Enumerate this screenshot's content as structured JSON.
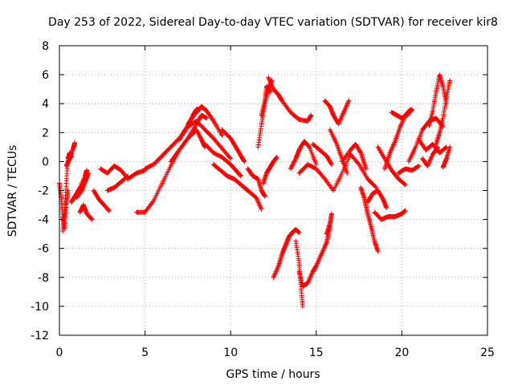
{
  "chart_data": {
    "type": "scatter",
    "title": "Day 253 of 2022, Sidereal Day-to-day VTEC variation (SDTVAR) for receiver kir8",
    "xlabel": "GPS time / hours",
    "ylabel": "SDTVAR / TECUs",
    "xlim": [
      0,
      25
    ],
    "ylim": [
      -12,
      8
    ],
    "xticks": [
      "0",
      "5",
      "10",
      "15",
      "20",
      "25"
    ],
    "yticks": [
      "-12",
      "-10",
      "-8",
      "-6",
      "-4",
      "-2",
      "0",
      "2",
      "4",
      "6",
      "8"
    ],
    "grid": true,
    "marker": "+",
    "series_color": "#ff0000",
    "tracks": [
      {
        "name": "track-01",
        "x": [
          0.0,
          0.1,
          0.2,
          0.3,
          0.4,
          0.5
        ],
        "y": [
          -1.5,
          -2.5,
          -3.8,
          -4.6,
          -3.0,
          -2.0
        ]
      },
      {
        "name": "track-02",
        "x": [
          0.2,
          0.3,
          0.4,
          0.5,
          0.6,
          0.7
        ],
        "y": [
          -4.8,
          -3.6,
          -1.5,
          0.2,
          0.6,
          0.3
        ]
      },
      {
        "name": "track-03",
        "x": [
          0.4,
          0.6,
          0.8,
          0.9
        ],
        "y": [
          -0.3,
          0.2,
          0.9,
          1.3
        ]
      },
      {
        "name": "track-04",
        "x": [
          0.7,
          0.9,
          1.2,
          1.5,
          1.6
        ],
        "y": [
          -2.8,
          -2.4,
          -1.8,
          -1.0,
          -0.6
        ]
      },
      {
        "name": "track-05",
        "x": [
          1.0,
          1.3,
          1.5,
          1.7
        ],
        "y": [
          -2.5,
          -2.0,
          -1.4,
          -0.8
        ]
      },
      {
        "name": "track-06",
        "x": [
          1.2,
          1.4,
          1.6,
          1.9
        ],
        "y": [
          -3.5,
          -3.0,
          -3.6,
          -4.0
        ]
      },
      {
        "name": "track-07",
        "x": [
          2.0,
          2.3,
          2.6,
          2.9
        ],
        "y": [
          -2.0,
          -2.6,
          -3.0,
          -3.4
        ]
      },
      {
        "name": "track-08",
        "x": [
          2.4,
          2.8,
          3.2,
          3.6,
          4.0,
          4.5,
          5.0
        ],
        "y": [
          -0.5,
          -0.8,
          -0.3,
          -0.6,
          -1.2,
          -0.8,
          -0.6
        ]
      },
      {
        "name": "track-09",
        "x": [
          2.8,
          3.2,
          3.6,
          4.0
        ],
        "y": [
          -2.0,
          -1.8,
          -1.4,
          -1.0
        ]
      },
      {
        "name": "track-10",
        "x": [
          4.5,
          5.0,
          5.5,
          6.0,
          6.5,
          7.0,
          7.5,
          8.0,
          8.3,
          8.5
        ],
        "y": [
          -3.5,
          -3.5,
          -2.7,
          -1.5,
          -0.3,
          0.8,
          1.6,
          2.2,
          1.5,
          1.0
        ]
      },
      {
        "name": "track-11",
        "x": [
          5.0,
          5.5,
          6.0,
          6.5,
          7.0,
          7.5,
          7.8,
          8.0,
          8.2
        ],
        "y": [
          -0.5,
          -0.2,
          0.4,
          1.0,
          1.6,
          2.5,
          3.2,
          3.6,
          3.6
        ]
      },
      {
        "name": "track-12",
        "x": [
          6.5,
          7.0,
          7.5,
          8.0,
          8.3,
          8.6
        ],
        "y": [
          0.0,
          0.8,
          1.6,
          2.6,
          3.2,
          3.0
        ]
      },
      {
        "name": "track-13",
        "x": [
          7.0,
          7.5,
          8.0,
          8.5,
          9.0,
          9.5,
          10.0
        ],
        "y": [
          1.5,
          2.4,
          2.8,
          2.2,
          1.6,
          0.9,
          0.2
        ]
      },
      {
        "name": "track-14",
        "x": [
          7.5,
          8.0,
          8.3,
          8.6,
          9.0,
          9.5
        ],
        "y": [
          2.6,
          3.4,
          3.8,
          3.5,
          2.8,
          1.8
        ]
      },
      {
        "name": "track-15",
        "x": [
          8.5,
          9.0,
          9.5,
          10.0,
          10.3,
          10.6
        ],
        "y": [
          1.2,
          0.6,
          0.3,
          -0.2,
          -0.6,
          -1.0
        ]
      },
      {
        "name": "track-16",
        "x": [
          9.5,
          10.0,
          10.3,
          10.6,
          10.8
        ],
        "y": [
          2.2,
          1.6,
          1.0,
          0.4,
          0.0
        ]
      },
      {
        "name": "track-17",
        "x": [
          9.0,
          9.4,
          9.8,
          10.2,
          10.6,
          11.0
        ],
        "y": [
          -0.2,
          -0.6,
          -1.0,
          -1.2,
          -1.6,
          -2.0
        ]
      },
      {
        "name": "track-18",
        "x": [
          10.5,
          11.0,
          11.5,
          11.8
        ],
        "y": [
          -1.5,
          -2.0,
          -2.5,
          -3.3
        ]
      },
      {
        "name": "track-19",
        "x": [
          11.0,
          11.3,
          11.6,
          11.8,
          12.0
        ],
        "y": [
          -0.5,
          -1.0,
          -1.2,
          -2.0,
          -2.4
        ]
      },
      {
        "name": "track-20",
        "x": [
          11.6,
          11.8,
          12.0,
          12.2,
          12.4
        ],
        "y": [
          1.0,
          2.6,
          4.0,
          5.0,
          5.6
        ]
      },
      {
        "name": "track-21",
        "x": [
          11.8,
          12.0,
          12.1,
          12.3
        ],
        "y": [
          3.2,
          4.2,
          5.2,
          4.8
        ]
      },
      {
        "name": "track-22",
        "x": [
          12.2,
          12.5,
          12.8,
          13.0,
          13.5,
          14.0,
          14.5,
          14.7
        ],
        "y": [
          5.8,
          5.0,
          4.6,
          4.2,
          3.4,
          2.9,
          2.8,
          3.2
        ]
      },
      {
        "name": "track-23",
        "x": [
          11.9,
          12.1,
          12.3,
          12.5,
          12.7
        ],
        "y": [
          -1.5,
          -0.8,
          -0.4,
          0.0,
          0.3
        ]
      },
      {
        "name": "track-24",
        "x": [
          12.5,
          12.8,
          13.0,
          13.2,
          13.4,
          13.6,
          13.8,
          14.0
        ],
        "y": [
          -8.0,
          -7.2,
          -6.4,
          -5.8,
          -5.2,
          -4.9,
          -4.7,
          -4.9
        ]
      },
      {
        "name": "track-25",
        "x": [
          13.8,
          14.0,
          14.1,
          14.2
        ],
        "y": [
          -5.5,
          -7.0,
          -8.5,
          -10.0
        ]
      },
      {
        "name": "track-26",
        "x": [
          14.0,
          14.2,
          14.5,
          14.8,
          15.0,
          15.3,
          15.6,
          15.8
        ],
        "y": [
          -7.6,
          -8.6,
          -8.4,
          -7.6,
          -7.2,
          -6.4,
          -5.6,
          -4.5
        ]
      },
      {
        "name": "track-27",
        "x": [
          15.6,
          15.8,
          15.9
        ],
        "y": [
          -5.0,
          -4.3,
          -3.6
        ]
      },
      {
        "name": "track-28",
        "x": [
          13.5,
          13.8,
          14.0,
          14.3,
          14.6,
          15.0
        ],
        "y": [
          -0.5,
          0.2,
          0.8,
          1.4,
          1.0,
          -0.2
        ]
      },
      {
        "name": "track-29",
        "x": [
          14.0,
          14.5,
          15.0,
          15.5,
          16.0,
          16.5,
          17.0
        ],
        "y": [
          -0.8,
          -0.2,
          -0.5,
          -1.2,
          -2.0,
          -0.8,
          0.5
        ]
      },
      {
        "name": "track-30",
        "x": [
          14.8,
          15.2,
          15.6,
          15.9
        ],
        "y": [
          1.2,
          0.8,
          0.4,
          -0.2
        ]
      },
      {
        "name": "track-31",
        "x": [
          15.5,
          15.8,
          16.0,
          16.3,
          16.6,
          16.9
        ],
        "y": [
          4.2,
          3.8,
          3.2,
          2.6,
          3.4,
          4.2
        ]
      },
      {
        "name": "track-32",
        "x": [
          15.8,
          16.2,
          16.5,
          16.8
        ],
        "y": [
          2.2,
          1.2,
          0.2,
          -0.8
        ]
      },
      {
        "name": "track-33",
        "x": [
          16.5,
          17.0,
          17.3,
          17.6,
          17.9
        ],
        "y": [
          0.0,
          0.8,
          1.2,
          0.6,
          -0.5
        ]
      },
      {
        "name": "track-34",
        "x": [
          17.0,
          17.5,
          18.0,
          18.5
        ],
        "y": [
          0.5,
          -0.2,
          -1.2,
          -1.8
        ]
      },
      {
        "name": "track-35",
        "x": [
          17.6,
          17.8,
          18.0,
          18.2,
          18.4,
          18.6
        ],
        "y": [
          -1.8,
          -2.5,
          -3.6,
          -4.5,
          -5.5,
          -6.2
        ]
      },
      {
        "name": "track-36",
        "x": [
          18.0,
          18.3,
          18.6,
          18.9,
          19.1
        ],
        "y": [
          -2.8,
          -2.2,
          -2.0,
          -2.6,
          -3.2
        ]
      },
      {
        "name": "track-37",
        "x": [
          18.4,
          18.8,
          19.2,
          19.6,
          20.0,
          20.2
        ],
        "y": [
          -3.5,
          -4.0,
          -3.8,
          -3.8,
          -3.6,
          -3.4
        ]
      },
      {
        "name": "track-38",
        "x": [
          18.6,
          19.0,
          19.4,
          19.8,
          20.2
        ],
        "y": [
          1.0,
          0.2,
          -0.6,
          -1.2,
          -1.6
        ]
      },
      {
        "name": "track-39",
        "x": [
          19.0,
          19.3,
          19.6,
          19.9,
          20.2,
          20.5
        ],
        "y": [
          -0.5,
          0.6,
          1.4,
          2.4,
          3.2,
          3.6
        ]
      },
      {
        "name": "track-40",
        "x": [
          19.4,
          19.7,
          20.0,
          20.3,
          20.6
        ],
        "y": [
          3.4,
          3.2,
          3.0,
          3.2,
          3.6
        ]
      },
      {
        "name": "track-41",
        "x": [
          19.8,
          20.2,
          20.6,
          21.0
        ],
        "y": [
          -0.8,
          -0.5,
          -0.6,
          -0.3
        ]
      },
      {
        "name": "track-42",
        "x": [
          20.4,
          20.8,
          21.2,
          21.6,
          22.0,
          22.4
        ],
        "y": [
          0.0,
          1.0,
          2.2,
          2.8,
          3.0,
          2.4
        ]
      },
      {
        "name": "track-43",
        "x": [
          21.0,
          21.4,
          21.8,
          22.2,
          22.6
        ],
        "y": [
          1.5,
          0.8,
          1.2,
          0.6,
          1.0
        ]
      },
      {
        "name": "track-44",
        "x": [
          21.6,
          21.8,
          22.0,
          22.2,
          22.4,
          22.6
        ],
        "y": [
          2.5,
          3.5,
          4.8,
          6.0,
          5.2,
          4.0
        ]
      },
      {
        "name": "track-45",
        "x": [
          22.0,
          22.2,
          22.4,
          22.6,
          22.8
        ],
        "y": [
          1.2,
          2.0,
          3.0,
          4.4,
          5.6
        ]
      },
      {
        "name": "track-46",
        "x": [
          22.4,
          22.6,
          22.8
        ],
        "y": [
          -0.4,
          0.2,
          1.0
        ]
      },
      {
        "name": "track-47",
        "x": [
          21.2,
          21.5,
          21.8,
          22.1
        ],
        "y": [
          0.2,
          -0.3,
          0.5,
          1.0
        ]
      }
    ]
  }
}
